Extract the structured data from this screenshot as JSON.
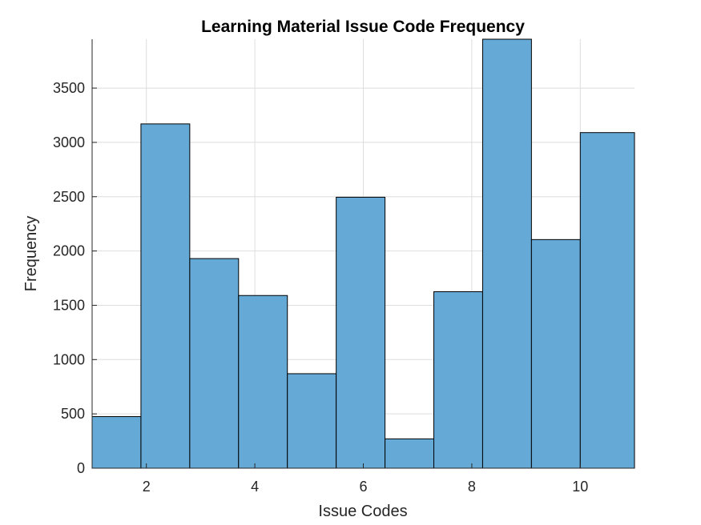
{
  "chart_data": {
    "type": "bar",
    "title": "Learning Material Issue Code Frequency",
    "xlabel": "Issue Codes",
    "ylabel": "Frequency",
    "bin_edges": [
      1.0,
      1.9,
      2.8,
      3.7,
      4.6,
      5.5,
      6.4,
      7.3,
      8.2,
      9.1,
      10.0,
      11.0
    ],
    "values": [
      475,
      3170,
      1930,
      1590,
      870,
      2495,
      270,
      1625,
      3950,
      2105,
      3090
    ],
    "xlim": [
      1,
      11
    ],
    "ylim": [
      0,
      3950
    ],
    "xticks": [
      2,
      4,
      6,
      8,
      10
    ],
    "yticks": [
      0,
      500,
      1000,
      1500,
      2000,
      2500,
      3000,
      3500
    ],
    "grid": true,
    "bar_color": "#65A9D6",
    "edge_color": "#000000"
  }
}
